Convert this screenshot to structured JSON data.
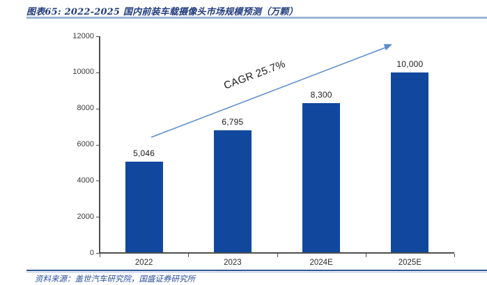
{
  "header": {
    "title": "图表65:  2022-2025 国内前装车载摄像头市场规模预测（万颗）"
  },
  "chart_data": {
    "type": "bar",
    "title": "2022-2025 国内前装车载摄像头市场规模预测（万颗）",
    "categories": [
      "2022",
      "2023",
      "2024E",
      "2025E"
    ],
    "values": [
      5046,
      6795,
      8300,
      10000
    ],
    "value_labels": [
      "5,046",
      "6,795",
      "8,300",
      "10,000"
    ],
    "unit": "万颗",
    "xlabel": "",
    "ylabel": "",
    "ylim": [
      0,
      12000
    ],
    "yticks": [
      0,
      2000,
      4000,
      6000,
      8000,
      10000,
      12000
    ],
    "grid": false,
    "legend": "none",
    "annotation": {
      "text": "CAGR 25.7%"
    },
    "colors": {
      "bar": "#11489E",
      "arrow": "#5B8BD0",
      "axis": "#4d4d4d",
      "title_text": "#223C7E",
      "source_text": "#2C4C9C"
    }
  },
  "footer": {
    "source": "资料来源：盖世汽车研究院，国盛证券研究所"
  }
}
